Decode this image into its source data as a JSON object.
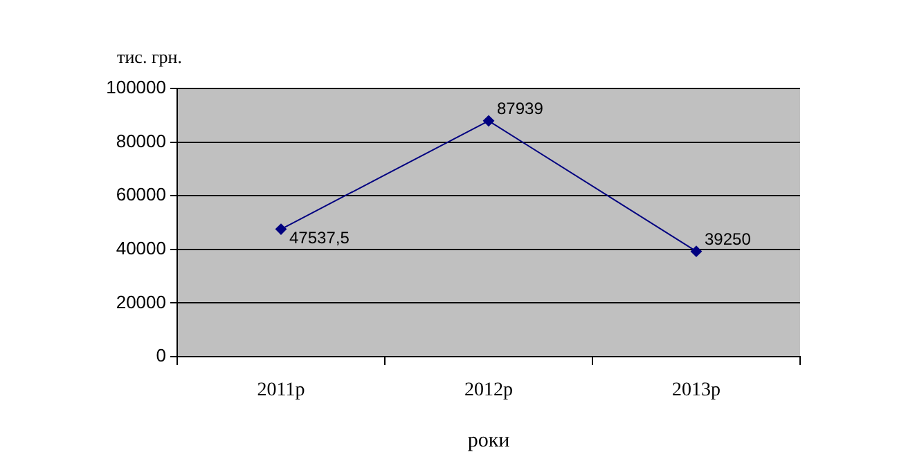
{
  "chart_data": {
    "type": "line",
    "xlabel": "роки",
    "ylabel": "тис. грн.",
    "categories": [
      "2011р",
      "2012р",
      "2013р"
    ],
    "series": [
      {
        "color": "#000080",
        "values": [
          47537.5,
          87939,
          39250
        ],
        "value_labels": [
          "47537,5",
          "87939",
          "39250"
        ]
      }
    ],
    "ylim": [
      0,
      100000
    ],
    "yticks": [
      0,
      20000,
      40000,
      60000,
      80000,
      100000
    ],
    "grid": "y",
    "legend": false,
    "marker": "diamond",
    "line_style": "solid"
  }
}
